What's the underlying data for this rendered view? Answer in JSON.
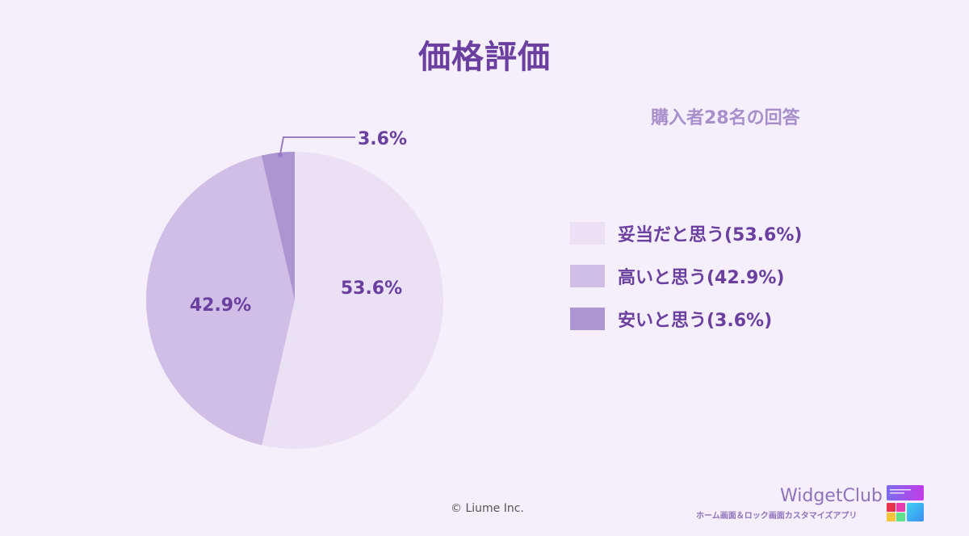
{
  "title": "価格評価",
  "subtitle": "購入者28名の回答",
  "legend": [
    {
      "label": "妥当だと思う(53.6%)",
      "color": "#ebe1f5"
    },
    {
      "label": "高いと思う(42.9%)",
      "color": "#d1bee6"
    },
    {
      "label": "安いと思う(3.6%)",
      "color": "#ad95d2"
    }
  ],
  "slice_labels": {
    "s0": "53.6%",
    "s1": "42.9%",
    "s2": "3.6%"
  },
  "footer": {
    "copyright": "© Liume Inc.",
    "brand": "WidgetClub",
    "brand_sub": "ホーム画面＆ロック画面カスタマイズアプリ"
  },
  "chart_data": {
    "type": "pie",
    "title": "価格評価",
    "subtitle": "購入者28名の回答",
    "categories": [
      "妥当だと思う",
      "高いと思う",
      "安いと思う"
    ],
    "values": [
      53.6,
      42.9,
      3.6
    ],
    "colors": [
      "#ebe1f5",
      "#d1bee6",
      "#ad95d2"
    ],
    "legend_position": "right",
    "start_angle": "top, clockwise"
  }
}
